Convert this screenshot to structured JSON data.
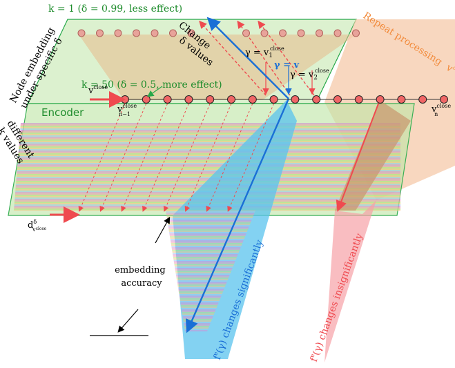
{
  "labels": {
    "k1": "k = 1 (δ = 0.99, less effect)",
    "k50": "k = 50 (δ = 0.5, more effect)",
    "node_embedding_line1": "Node embedding",
    "node_embedding_line2": "under specific δ",
    "encoder": "Encoder",
    "different_k_line1": "different",
    "different_k_line2": "k values",
    "change_delta_line1": "Change",
    "change_delta_line2": "δ values",
    "gamma_v1": "γ = v",
    "gamma_v1_sub": "1",
    "gamma_v1_sup": "close",
    "gamma_v": "γ = v",
    "gamma_v2": "γ = v",
    "gamma_v2_sub": "2",
    "gamma_v2_sup": "close",
    "repeat_processing": "Repeat processing",
    "repeat_v": "v",
    "repeat_v_sup": "close",
    "v_close": "v",
    "v_close_sup": "close",
    "v_n_minus_1": "v",
    "v_n_minus_1_sup": "close",
    "v_n_minus_1_sub": "n−1",
    "v_n": "v",
    "v_n_sup": "close",
    "v_n_sub": "n",
    "d_delta": "d",
    "d_delta_sup": "δ",
    "d_delta_sub": "v",
    "d_delta_subsup": "close",
    "embedding_accuracy_line1": "embedding",
    "embedding_accuracy_line2": "accuracy",
    "changes_significantly": "f",
    "changes_significantly_rest": "(γ)  changes significantly",
    "changes_insignificantly": "f",
    "changes_insignificantly_rest": "(γ)  changes insignificantly",
    "f_sup": "e"
  },
  "colors": {
    "plane_fill": "#bfe6a8",
    "plane_stroke": "#27a84a",
    "green_text": "#1e8c2c",
    "blue": "#1a6fd6",
    "red": "#ef4a4f",
    "orange": "#f28b3c",
    "peach": "#f6c9a9",
    "node_fill": "#f06666",
    "node_fill_faded": "#e8a39a",
    "highlight_node": "#1a6fd6"
  }
}
